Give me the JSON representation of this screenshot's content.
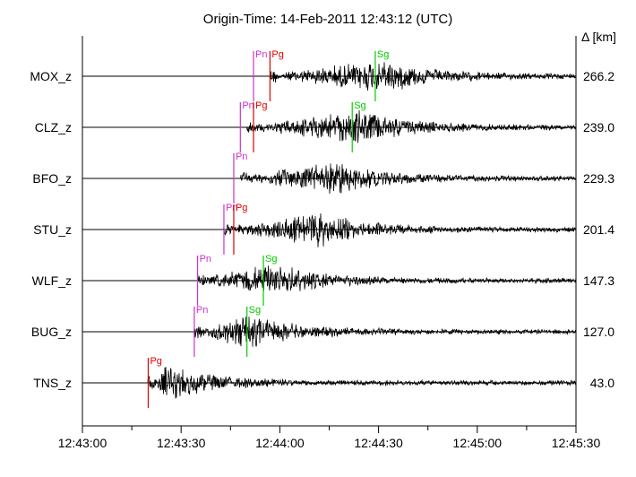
{
  "chart_data": {
    "type": "line",
    "title": "Origin-Time: 14-Feb-2011 12:43:12 (UTC)",
    "right_axis_label": "Δ [km]",
    "x_range_seconds_after_12_43_00": [
      0,
      150
    ],
    "x_ticks": [
      "12:43:00",
      "12:43:30",
      "12:44:00",
      "12:44:30",
      "12:45:00",
      "12:45:30"
    ],
    "trace_color": "#000000",
    "phase_colors": {
      "Pn": "#cc33cc",
      "Pg": "#e00000",
      "Sg": "#00cc00"
    },
    "traces": [
      {
        "station": "MOX_z",
        "distance_km": "266.2",
        "signal_start": "12:43:57",
        "peak": "12:44:31",
        "end": "12:45:30",
        "picks": [
          {
            "phase": "Pn",
            "time": "12:43:52"
          },
          {
            "phase": "Pg",
            "time": "12:43:57"
          },
          {
            "phase": "Sg",
            "time": "12:44:29"
          }
        ]
      },
      {
        "station": "CLZ_z",
        "distance_km": "239.0",
        "signal_start": "12:43:50",
        "peak": "12:44:25",
        "end": "12:45:30",
        "picks": [
          {
            "phase": "Pn",
            "time": "12:43:48"
          },
          {
            "phase": "Pg",
            "time": "12:43:52"
          },
          {
            "phase": "Sg",
            "time": "12:44:22"
          }
        ]
      },
      {
        "station": "BFO_z",
        "distance_km": "229.3",
        "signal_start": "12:43:48",
        "peak": "12:44:17",
        "end": "12:45:30",
        "picks": [
          {
            "phase": "Pn",
            "time": "12:43:46"
          }
        ]
      },
      {
        "station": "STU_z",
        "distance_km": "201.4",
        "signal_start": "12:43:43",
        "peak": "12:44:12",
        "end": "12:45:30",
        "picks": [
          {
            "phase": "Pn",
            "time": "12:43:43"
          },
          {
            "phase": "Pg",
            "time": "12:43:46"
          }
        ]
      },
      {
        "station": "WLF_z",
        "distance_km": "147.3",
        "signal_start": "12:43:35",
        "peak": "12:43:59",
        "end": "12:45:30",
        "picks": [
          {
            "phase": "Pn",
            "time": "12:43:35"
          },
          {
            "phase": "Sg",
            "time": "12:43:55"
          }
        ]
      },
      {
        "station": "BUG_z",
        "distance_km": "127.0",
        "signal_start": "12:43:34",
        "peak": "12:43:50",
        "end": "12:45:30",
        "picks": [
          {
            "phase": "Pn",
            "time": "12:43:34"
          },
          {
            "phase": "Sg",
            "time": "12:43:50"
          }
        ]
      },
      {
        "station": "TNS_z",
        "distance_km": "43.0",
        "signal_start": "12:43:20",
        "peak": "12:43:26",
        "end": "12:45:30",
        "picks": [
          {
            "phase": "Pg",
            "time": "12:43:20"
          }
        ]
      }
    ]
  }
}
